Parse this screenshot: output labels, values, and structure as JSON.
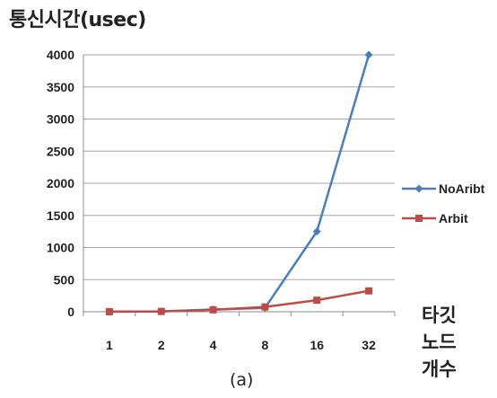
{
  "chart_data": {
    "type": "line",
    "ylabel": "통신시간(usec)",
    "xlabel_lines": [
      "타깃",
      "노드",
      "개수"
    ],
    "caption": "(a)",
    "categories": [
      "1",
      "2",
      "4",
      "8",
      "16",
      "32"
    ],
    "ylim": [
      0,
      4000
    ],
    "yticks": [
      0,
      500,
      1000,
      1500,
      2000,
      2500,
      3000,
      3500,
      4000
    ],
    "grid": true,
    "legend_position": "right",
    "series": [
      {
        "name": "NoAribt",
        "color": "#4a7ebb",
        "marker": "diamond",
        "values": [
          2,
          6,
          35,
          60,
          1250,
          4000
        ]
      },
      {
        "name": "Arbit",
        "color": "#be4b48",
        "marker": "square",
        "values": [
          1,
          5,
          30,
          75,
          180,
          325
        ]
      }
    ]
  }
}
